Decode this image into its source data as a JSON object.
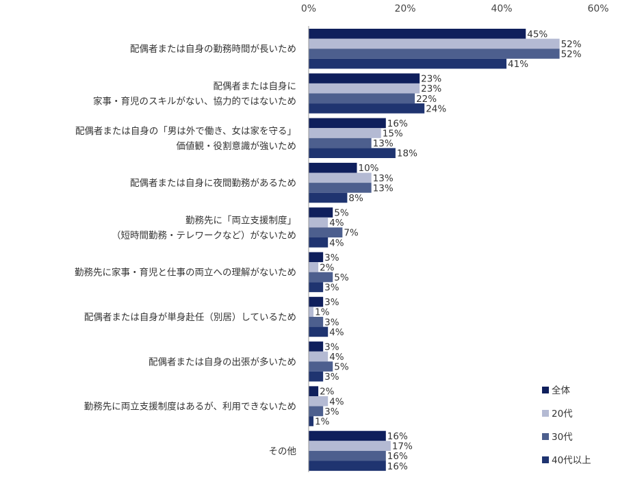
{
  "chart_data": {
    "type": "bar",
    "orientation": "horizontal",
    "title": "",
    "xlabel": "",
    "ylabel": "",
    "xlim": [
      0,
      60
    ],
    "x_ticks": [
      "0%",
      "20%",
      "40%",
      "60%"
    ],
    "x_tick_values": [
      0,
      20,
      40,
      60
    ],
    "grid": false,
    "legend_position": "bottom-right",
    "categories": [
      [
        "配偶者または自身の勤務時間が長いため"
      ],
      [
        "配偶者または自身に",
        "家事・育児のスキルがない、協力的ではないため"
      ],
      [
        "配偶者または自身の「男は外で働き、女は家を守る」",
        "価値観・役割意識が強いため"
      ],
      [
        "配偶者または自身に夜間勤務があるため"
      ],
      [
        "勤務先に「両立支援制度」",
        "（短時間勤務・テレワークなど）がないため"
      ],
      [
        "勤務先に家事・育児と仕事の両立への理解がないため"
      ],
      [
        "配偶者または自身が単身赴任（別居）しているため"
      ],
      [
        "配偶者または自身の出張が多いため"
      ],
      [
        "勤務先に両立支援制度はあるが、利用できないため"
      ],
      [
        "その他"
      ]
    ],
    "series": [
      {
        "name": "全体",
        "color": "#0f1f5c",
        "values": [
          45,
          23,
          16,
          10,
          5,
          3,
          3,
          3,
          2,
          16
        ]
      },
      {
        "name": "20代",
        "color": "#b4bad3",
        "values": [
          52,
          23,
          15,
          13,
          4,
          2,
          1,
          4,
          4,
          17
        ]
      },
      {
        "name": "30代",
        "color": "#4d5f8e",
        "values": [
          52,
          22,
          13,
          13,
          7,
          5,
          3,
          5,
          3,
          16
        ]
      },
      {
        "name": "40代以上",
        "color": "#1f3470",
        "values": [
          41,
          24,
          18,
          8,
          4,
          3,
          4,
          3,
          1,
          16
        ]
      }
    ],
    "value_suffix": "%"
  }
}
